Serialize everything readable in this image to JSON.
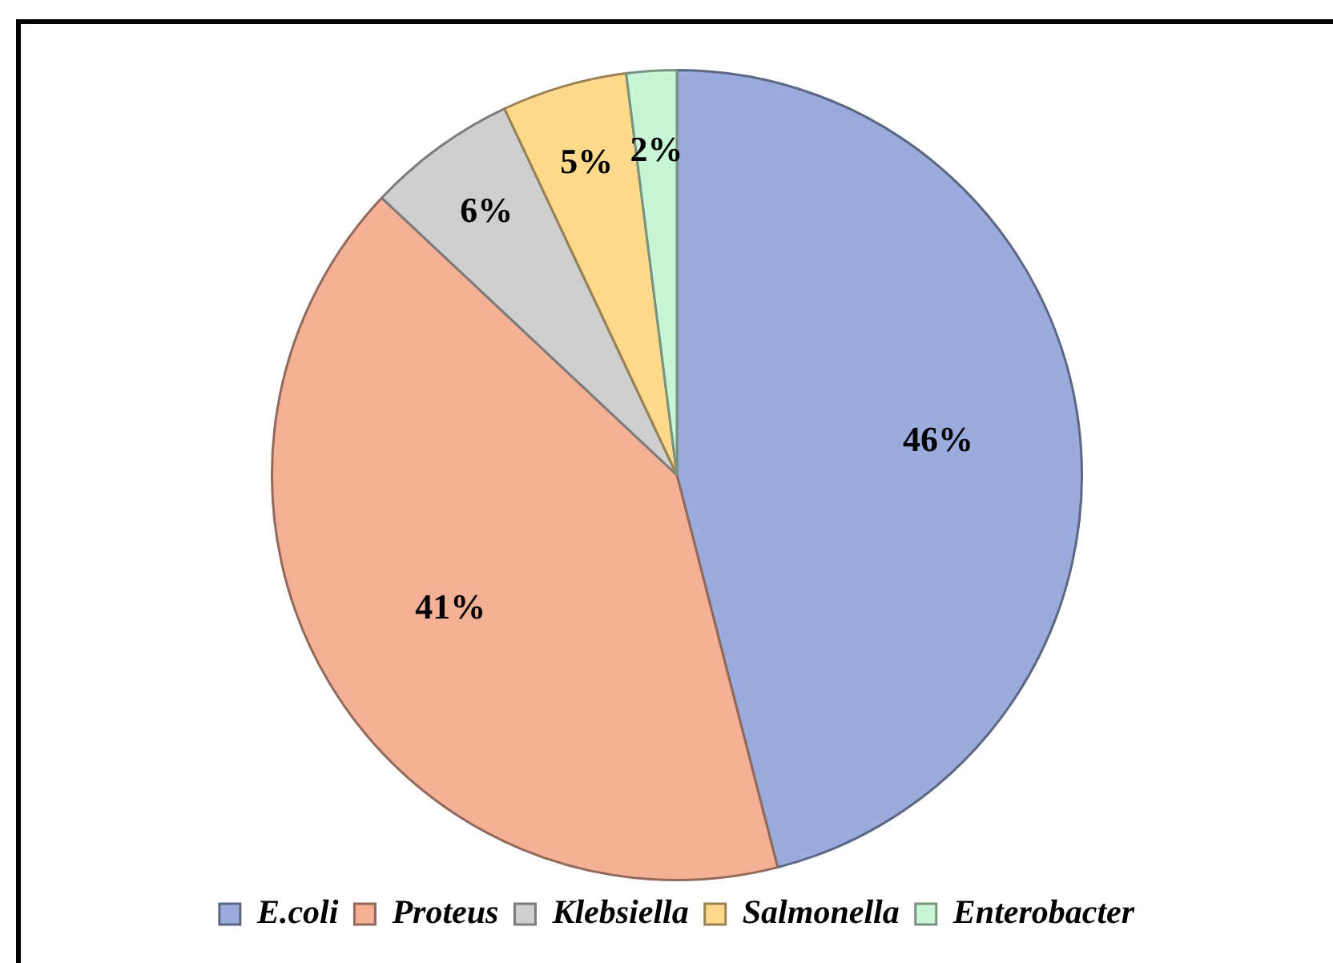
{
  "chart_data": {
    "type": "pie",
    "categories": [
      "E.coli",
      "Proteus",
      "Klebsiella",
      "Salmonella",
      "Enterobacter"
    ],
    "values": [
      46,
      41,
      6,
      5,
      2
    ],
    "colors": [
      "#9aabdc",
      "#f5b196",
      "#cfcfcf",
      "#ffd98c",
      "#c8f5d6"
    ],
    "value_labels": [
      "46%",
      "41%",
      "6%",
      "5%",
      "2%"
    ],
    "legend": "bottom"
  }
}
